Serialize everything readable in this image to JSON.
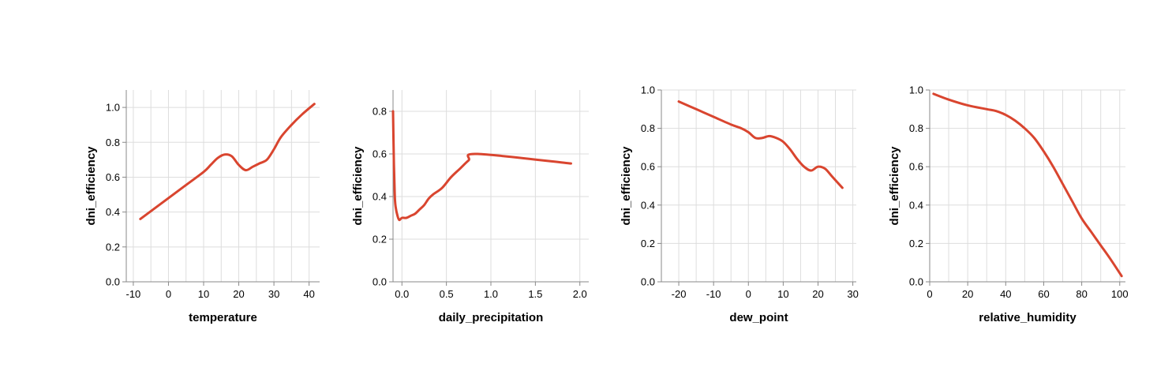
{
  "colors": {
    "line": "#d9452f",
    "grid": "#dddddd",
    "axis": "#888888"
  },
  "chart_data": [
    {
      "type": "line",
      "xlabel": "temperature",
      "ylabel": "dni_efficiency",
      "xlim": [
        -12,
        43
      ],
      "ylim": [
        0,
        1.1
      ],
      "xticks": [
        -10,
        0,
        10,
        20,
        30,
        40
      ],
      "yticks": [
        0.0,
        0.2,
        0.4,
        0.6,
        0.8,
        1.0
      ],
      "xgrid": [
        -10,
        -5,
        0,
        5,
        10,
        15,
        20,
        25,
        30,
        35,
        40
      ],
      "grid": true,
      "x": [
        -8,
        -2,
        4,
        10,
        12,
        14,
        16,
        18,
        20,
        22,
        24,
        26,
        28,
        30,
        32,
        35,
        38,
        41.5
      ],
      "y": [
        0.36,
        0.45,
        0.54,
        0.63,
        0.67,
        0.71,
        0.73,
        0.72,
        0.67,
        0.64,
        0.66,
        0.68,
        0.7,
        0.76,
        0.83,
        0.9,
        0.96,
        1.02
      ]
    },
    {
      "type": "line",
      "xlabel": "daily_precipitation",
      "ylabel": "dni_efficiency",
      "xlim": [
        -0.1,
        2.1
      ],
      "ylim": [
        0,
        0.9
      ],
      "xticks": [
        0.0,
        0.5,
        1.0,
        1.5,
        2.0
      ],
      "yticks": [
        0.0,
        0.2,
        0.4,
        0.6,
        0.8
      ],
      "xgrid": [
        0.0,
        0.5,
        1.0,
        1.5,
        2.0
      ],
      "grid": true,
      "x": [
        -0.1,
        -0.09,
        -0.08,
        -0.07,
        -0.05,
        -0.03,
        0.0,
        0.05,
        0.1,
        0.15,
        0.2,
        0.25,
        0.3,
        0.35,
        0.45,
        0.55,
        0.65,
        0.75,
        0.85,
        1.9
      ],
      "y": [
        0.8,
        0.55,
        0.4,
        0.35,
        0.31,
        0.29,
        0.3,
        0.3,
        0.31,
        0.32,
        0.34,
        0.36,
        0.39,
        0.41,
        0.44,
        0.49,
        0.53,
        0.57,
        0.6,
        0.555
      ]
    },
    {
      "type": "line",
      "xlabel": "dew_point",
      "ylabel": "dni_efficiency",
      "xlim": [
        -25,
        31
      ],
      "ylim": [
        0,
        1.0
      ],
      "xticks": [
        -20,
        -10,
        0,
        10,
        20,
        30
      ],
      "yticks": [
        0.0,
        0.2,
        0.4,
        0.6,
        0.8,
        1.0
      ],
      "xgrid": [
        -20,
        -15,
        -10,
        -5,
        0,
        5,
        10,
        15,
        20,
        25,
        30
      ],
      "grid": true,
      "x": [
        -20,
        -15,
        -10,
        -5,
        -2,
        0,
        2,
        4,
        6,
        8,
        10,
        12,
        14,
        16,
        18,
        20,
        22,
        24,
        27
      ],
      "y": [
        0.94,
        0.9,
        0.86,
        0.82,
        0.8,
        0.78,
        0.75,
        0.75,
        0.76,
        0.75,
        0.73,
        0.69,
        0.64,
        0.6,
        0.58,
        0.6,
        0.59,
        0.55,
        0.49
      ]
    },
    {
      "type": "line",
      "xlabel": "relative_humidity",
      "ylabel": "dni_efficiency",
      "xlim": [
        0,
        103
      ],
      "ylim": [
        0,
        1.0
      ],
      "xticks": [
        0,
        20,
        40,
        60,
        80,
        100
      ],
      "yticks": [
        0.0,
        0.2,
        0.4,
        0.6,
        0.8,
        1.0
      ],
      "xgrid": [
        0,
        10,
        20,
        30,
        40,
        50,
        60,
        70,
        80,
        90,
        100
      ],
      "grid": true,
      "x": [
        2,
        10,
        20,
        30,
        35,
        40,
        45,
        50,
        55,
        60,
        65,
        70,
        75,
        80,
        85,
        90,
        95,
        101
      ],
      "y": [
        0.98,
        0.95,
        0.92,
        0.9,
        0.89,
        0.87,
        0.84,
        0.8,
        0.75,
        0.68,
        0.6,
        0.51,
        0.42,
        0.33,
        0.26,
        0.19,
        0.12,
        0.03
      ]
    }
  ]
}
